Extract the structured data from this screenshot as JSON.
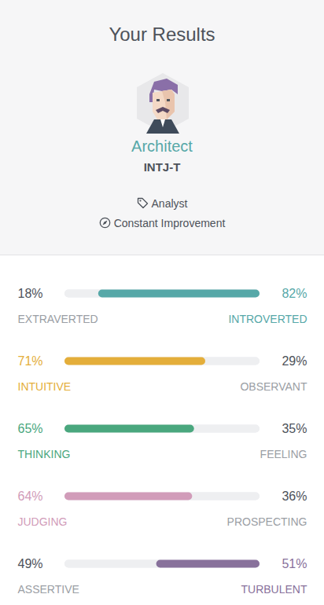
{
  "header": {
    "title": "Your Results",
    "type_name": "Architect",
    "type_code": "INTJ-T",
    "role": "Analyst",
    "strategy": "Constant Improvement"
  },
  "chart_data": {
    "type": "bar",
    "orientation": "horizontal",
    "stacked": true,
    "data_labels": true,
    "tick_labels": false,
    "xlim": [
      0,
      100
    ],
    "bars": [
      {
        "left": "EXTRAVERTED",
        "right": "INTROVERTED",
        "values": [
          18,
          82
        ],
        "value_labels": [
          "18%",
          "82%"
        ],
        "color": "#56a8a8"
      },
      {
        "left": "INTUITIVE",
        "right": "OBSERVANT",
        "values": [
          71,
          29
        ],
        "value_labels": [
          "71%",
          "29%"
        ],
        "color": "#e4ae3a"
      },
      {
        "left": "THINKING",
        "right": "FEELING",
        "values": [
          65,
          35
        ],
        "value_labels": [
          "65%",
          "35%"
        ],
        "color": "#4aa77e"
      },
      {
        "left": "JUDGING",
        "right": "PROSPECTING",
        "values": [
          64,
          36
        ],
        "value_labels": [
          "64%",
          "36%"
        ],
        "color": "#d19cb9"
      },
      {
        "left": "ASSERTIVE",
        "right": "TURBULENT",
        "values": [
          49,
          51
        ],
        "value_labels": [
          "49%",
          "51%"
        ],
        "color": "#88719b"
      }
    ]
  }
}
